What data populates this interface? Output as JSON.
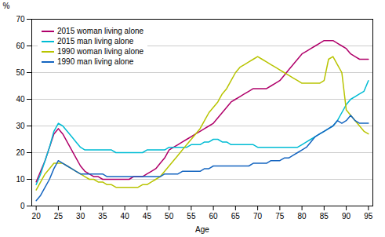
{
  "chart_data": {
    "type": "line",
    "xlabel": "Age",
    "ylabel": "%",
    "x": [
      20,
      21,
      22,
      23,
      24,
      25,
      26,
      27,
      28,
      29,
      30,
      31,
      32,
      33,
      34,
      35,
      36,
      37,
      38,
      39,
      40,
      41,
      42,
      43,
      44,
      45,
      46,
      47,
      48,
      49,
      50,
      51,
      52,
      53,
      54,
      55,
      56,
      57,
      58,
      59,
      60,
      61,
      62,
      63,
      64,
      65,
      66,
      67,
      68,
      69,
      70,
      71,
      72,
      73,
      74,
      75,
      76,
      77,
      78,
      79,
      80,
      81,
      82,
      83,
      84,
      85,
      86,
      87,
      88,
      89,
      90,
      91,
      92,
      93,
      94,
      95
    ],
    "series": [
      {
        "name": "2015 woman living alone",
        "color": "#b0006a",
        "values": [
          9,
          13,
          17,
          22,
          27,
          29,
          27,
          24,
          21,
          18,
          15,
          13,
          12,
          11,
          11,
          10,
          10,
          10,
          10,
          10,
          10,
          10,
          11,
          11,
          11,
          12,
          13,
          14,
          16,
          18,
          21,
          22,
          23,
          24,
          25,
          26,
          27,
          28,
          29,
          30,
          31,
          33,
          35,
          37,
          39,
          40,
          41,
          42,
          43,
          44,
          44,
          44,
          44,
          45,
          46,
          47,
          49,
          51,
          53,
          55,
          57,
          58,
          59,
          60,
          61,
          62,
          62,
          62,
          61,
          60,
          59,
          57,
          56,
          55,
          55,
          55
        ]
      },
      {
        "name": "2015 man living alone",
        "color": "#00bcd4",
        "values": [
          8,
          12,
          17,
          22,
          28,
          31,
          30,
          28,
          26,
          24,
          22,
          21,
          21,
          21,
          21,
          21,
          21,
          21,
          20,
          20,
          20,
          20,
          20,
          20,
          20,
          21,
          21,
          21,
          21,
          21,
          22,
          22,
          22,
          22,
          22,
          23,
          23,
          23,
          24,
          24,
          25,
          25,
          24,
          24,
          23,
          23,
          23,
          23,
          23,
          23,
          22,
          22,
          22,
          22,
          22,
          22,
          22,
          22,
          22,
          22,
          23,
          24,
          25,
          26,
          27,
          28,
          29,
          30,
          32,
          35,
          38,
          40,
          41,
          42,
          43,
          47
        ]
      },
      {
        "name": "1990 woman living alone",
        "color": "#b8c400",
        "values": [
          6,
          9,
          12,
          14,
          16,
          16,
          16,
          15,
          14,
          13,
          12,
          11,
          10,
          10,
          9,
          9,
          8,
          8,
          7,
          7,
          7,
          7,
          7,
          7,
          8,
          8,
          9,
          10,
          11,
          13,
          15,
          17,
          19,
          21,
          23,
          25,
          27,
          29,
          32,
          35,
          37,
          39,
          42,
          44,
          47,
          50,
          52,
          53,
          54,
          55,
          56,
          55,
          54,
          53,
          52,
          51,
          50,
          49,
          48,
          47,
          46,
          46,
          46,
          46,
          46,
          47,
          55,
          56,
          53,
          50,
          36,
          34,
          32,
          30,
          28,
          27
        ]
      },
      {
        "name": "1990 man living alone",
        "color": "#1565c0",
        "values": [
          2,
          4,
          7,
          10,
          14,
          17,
          16,
          15,
          14,
          13,
          12,
          12,
          12,
          12,
          12,
          12,
          11,
          11,
          11,
          11,
          11,
          11,
          11,
          11,
          11,
          11,
          11,
          11,
          11,
          12,
          12,
          12,
          12,
          13,
          13,
          13,
          13,
          13,
          14,
          14,
          15,
          15,
          15,
          15,
          15,
          15,
          15,
          15,
          15,
          16,
          16,
          16,
          16,
          17,
          17,
          17,
          18,
          18,
          19,
          20,
          21,
          22,
          24,
          26,
          27,
          28,
          29,
          30,
          32,
          31,
          32,
          34,
          32,
          31,
          31,
          31
        ]
      }
    ],
    "xlim": [
      19,
      96
    ],
    "ylim": [
      0,
      70
    ],
    "xticks": [
      20,
      25,
      30,
      35,
      40,
      45,
      50,
      55,
      60,
      65,
      70,
      75,
      80,
      85,
      90,
      95
    ],
    "yticks": [
      0,
      10,
      20,
      30,
      40,
      50,
      60,
      70
    ],
    "grid": "y",
    "legend": "upper left"
  }
}
